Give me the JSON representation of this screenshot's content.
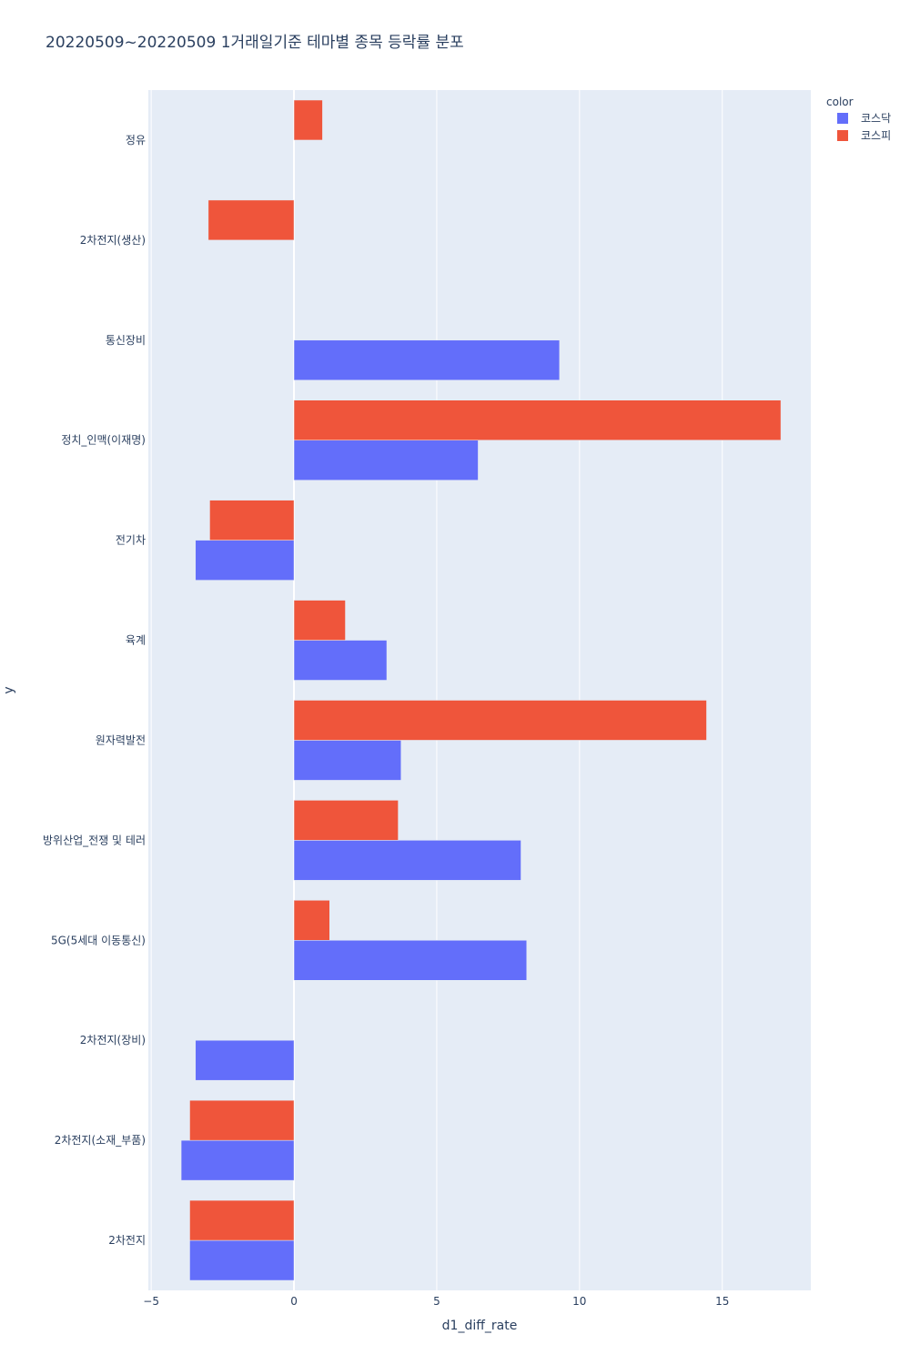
{
  "chart_data": {
    "type": "bar",
    "orientation": "horizontal",
    "barmode": "group",
    "title": "20220509~20220509 1거래일기준 테마별 종목 등락률 분포",
    "xlabel": "d1_diff_rate",
    "ylabel": "y",
    "xlim": [
      -5.1,
      18.1
    ],
    "xticks": [
      -5,
      0,
      5,
      10,
      15
    ],
    "grid": true,
    "legend_title": "color",
    "legend_position": "top-right",
    "categories": [
      "정유",
      "2차전지(생산)",
      "통신장비",
      "정치_인맥(이재명)",
      "전기차",
      "육계",
      "원자력발전",
      "방위산업_전쟁 및 테러",
      "5G(5세대 이동통신)",
      "2차전지(장비)",
      "2차전지(소재_부품)",
      "2차전지"
    ],
    "series": [
      {
        "name": "코스닥",
        "color": "#636efa",
        "values": [
          null,
          null,
          9.3,
          6.45,
          -3.45,
          3.25,
          3.75,
          7.95,
          8.15,
          -3.45,
          -3.95,
          -3.65
        ]
      },
      {
        "name": "코스피",
        "color": "#ef553b",
        "values": [
          1.0,
          -3.0,
          null,
          17.05,
          -2.95,
          1.8,
          14.45,
          3.65,
          1.25,
          null,
          -3.65,
          -3.65
        ]
      }
    ]
  }
}
